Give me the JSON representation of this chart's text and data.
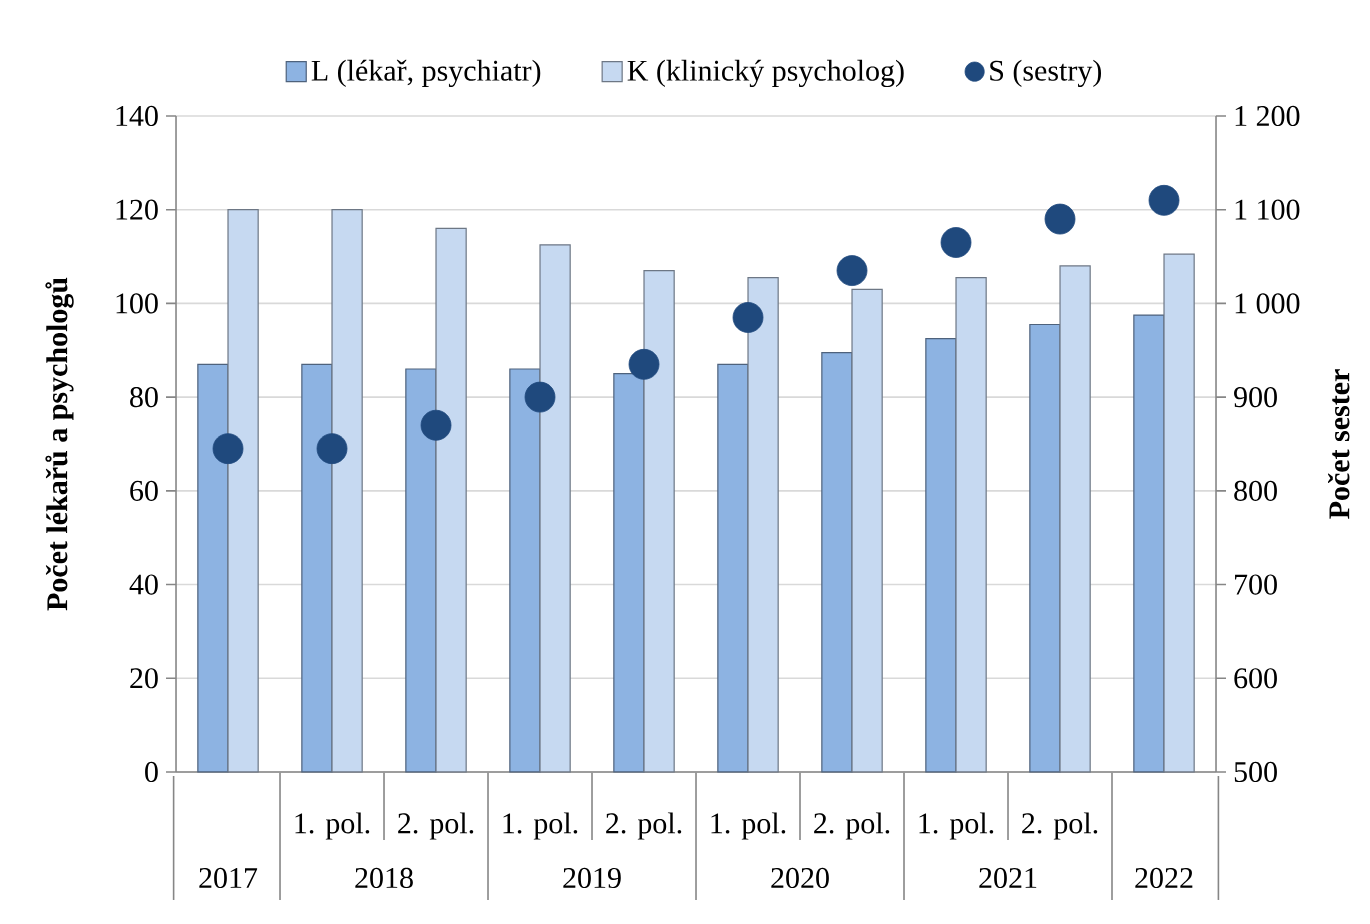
{
  "chart_data": {
    "type": "bar",
    "ylabel": "Počet lékařů a psychologů",
    "y2label": "Počet sester",
    "categories": [
      null,
      "1. pol.",
      "2. pol.",
      "1. pol.",
      "2. pol.",
      "1. pol.",
      "2. pol.",
      "1. pol.",
      "2. pol.",
      null
    ],
    "series": [
      {
        "name": "L (lékař, psychiatr)",
        "color": "#8db3e2",
        "values": [
          87,
          87,
          86,
          86,
          85,
          87,
          89.5,
          92.5,
          95.5,
          97.5
        ]
      },
      {
        "name": "K (klinický psycholog)",
        "color": "#c6d9f1",
        "values": [
          120,
          120,
          116,
          112.5,
          107,
          105.5,
          103,
          105.5,
          108,
          110.5
        ]
      },
      {
        "name": "S (sestry)",
        "type": "scatter",
        "axis": "y2",
        "marker": "circle",
        "color": "#1f497d",
        "values": [
          845,
          845,
          870,
          900,
          935,
          985,
          1035,
          1065,
          1090,
          1110
        ]
      }
    ],
    "ylim": [
      0,
      140
    ],
    "yticks": [
      0,
      20,
      40,
      60,
      80,
      100,
      120,
      140
    ],
    "y2lim": [
      500,
      1200
    ],
    "y2ticks": [
      500,
      600,
      700,
      800,
      900,
      {
        "value": 1000,
        "label": "1 000"
      },
      {
        "value": 1100,
        "label": "1 100"
      },
      {
        "value": 1200,
        "label": "1 200"
      }
    ],
    "grid": "y",
    "legend": "top",
    "annotations": [
      "2017",
      "2018",
      "2019",
      "2020",
      "2021",
      "2022"
    ]
  }
}
